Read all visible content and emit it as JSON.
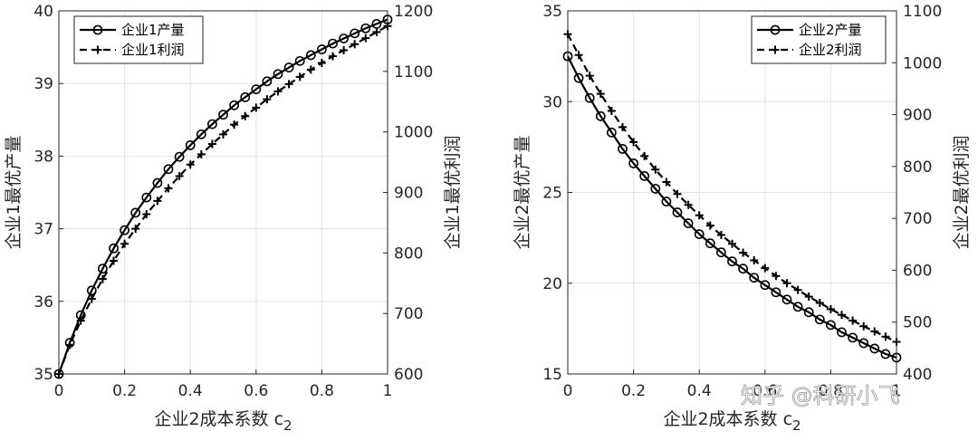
{
  "chart_data": [
    {
      "type": "line",
      "x": [
        0,
        0.0333,
        0.0667,
        0.1,
        0.1333,
        0.1667,
        0.2,
        0.2333,
        0.2667,
        0.3,
        0.3333,
        0.3667,
        0.4,
        0.4333,
        0.4667,
        0.5,
        0.5333,
        0.5667,
        0.6,
        0.6333,
        0.6667,
        0.7,
        0.7333,
        0.7667,
        0.8,
        0.8333,
        0.8667,
        0.9,
        0.9333,
        0.9667,
        1.0
      ],
      "xlabel": "企业2成本系数 c",
      "xlabel_sub": "2",
      "xlim": [
        0,
        1
      ],
      "xticks": [
        "0",
        "0.2",
        "0.4",
        "0.6",
        "0.8",
        "1"
      ],
      "ylabel_left": "企业1最优产量",
      "ylim_left": [
        35,
        40
      ],
      "yticks_left": [
        "35",
        "36",
        "37",
        "38",
        "39",
        "40"
      ],
      "ylabel_right": "企业1最优利润",
      "ylim_right": [
        600,
        1200
      ],
      "yticks_right": [
        "600",
        "700",
        "800",
        "900",
        "1000",
        "1100",
        "1200"
      ],
      "grid": true,
      "legend_position": "top-left",
      "series": [
        {
          "name": "企业1产量",
          "axis": "left",
          "line_style": "solid",
          "marker": "circle",
          "values": [
            35.0,
            35.43,
            35.81,
            36.15,
            36.45,
            36.73,
            36.98,
            37.22,
            37.43,
            37.63,
            37.82,
            37.99,
            38.15,
            38.3,
            38.44,
            38.57,
            38.7,
            38.81,
            38.92,
            39.03,
            39.13,
            39.22,
            39.31,
            39.39,
            39.47,
            39.55,
            39.62,
            39.69,
            39.76,
            39.82,
            39.88
          ]
        },
        {
          "name": "企业1利润",
          "axis": "right",
          "line_style": "dashed",
          "marker": "plus",
          "values": [
            600,
            648,
            688,
            724,
            757,
            787,
            815,
            840,
            864,
            886,
            907,
            927,
            946,
            963,
            980,
            996,
            1012,
            1026,
            1040,
            1054,
            1067,
            1079,
            1091,
            1103,
            1114,
            1125,
            1135,
            1145,
            1155,
            1165,
            1175
          ]
        }
      ]
    },
    {
      "type": "line",
      "x": [
        0,
        0.0333,
        0.0667,
        0.1,
        0.1333,
        0.1667,
        0.2,
        0.2333,
        0.2667,
        0.3,
        0.3333,
        0.3667,
        0.4,
        0.4333,
        0.4667,
        0.5,
        0.5333,
        0.5667,
        0.6,
        0.6333,
        0.6667,
        0.7,
        0.7333,
        0.7667,
        0.8,
        0.8333,
        0.8667,
        0.9,
        0.9333,
        0.9667,
        1.0
      ],
      "xlabel": "企业2成本系数 c",
      "xlabel_sub": "2",
      "xlim": [
        0,
        1
      ],
      "xticks": [
        "0",
        "0.2",
        "0.4",
        "0.6",
        "0.8",
        "1"
      ],
      "ylabel_left": "企业2最优产量",
      "ylim_left": [
        15,
        35
      ],
      "yticks_left": [
        "15",
        "20",
        "25",
        "30",
        "35"
      ],
      "ylabel_right": "企业2最优利润",
      "ylim_right": [
        400,
        1100
      ],
      "yticks_right": [
        "400",
        "500",
        "600",
        "700",
        "800",
        "900",
        "1000",
        "1100"
      ],
      "grid": true,
      "legend_position": "top-right",
      "series": [
        {
          "name": "企业2产量",
          "axis": "left",
          "line_style": "solid",
          "marker": "circle",
          "values": [
            32.5,
            31.3,
            30.2,
            29.2,
            28.3,
            27.4,
            26.6,
            25.9,
            25.2,
            24.5,
            23.9,
            23.3,
            22.7,
            22.2,
            21.7,
            21.2,
            20.8,
            20.3,
            19.9,
            19.5,
            19.1,
            18.7,
            18.4,
            18.0,
            17.7,
            17.3,
            17.0,
            16.7,
            16.4,
            16.1,
            15.9
          ]
        },
        {
          "name": "企业2利润",
          "axis": "right",
          "line_style": "dashed",
          "marker": "plus",
          "values": [
            1055,
            1015,
            975,
            940,
            907,
            876,
            847,
            820,
            794,
            770,
            747,
            726,
            706,
            686,
            668,
            651,
            634,
            619,
            604,
            589,
            575,
            562,
            549,
            537,
            525,
            514,
            503,
            492,
            482,
            472,
            462
          ]
        }
      ]
    }
  ],
  "watermark": "知乎 @科研小飞"
}
